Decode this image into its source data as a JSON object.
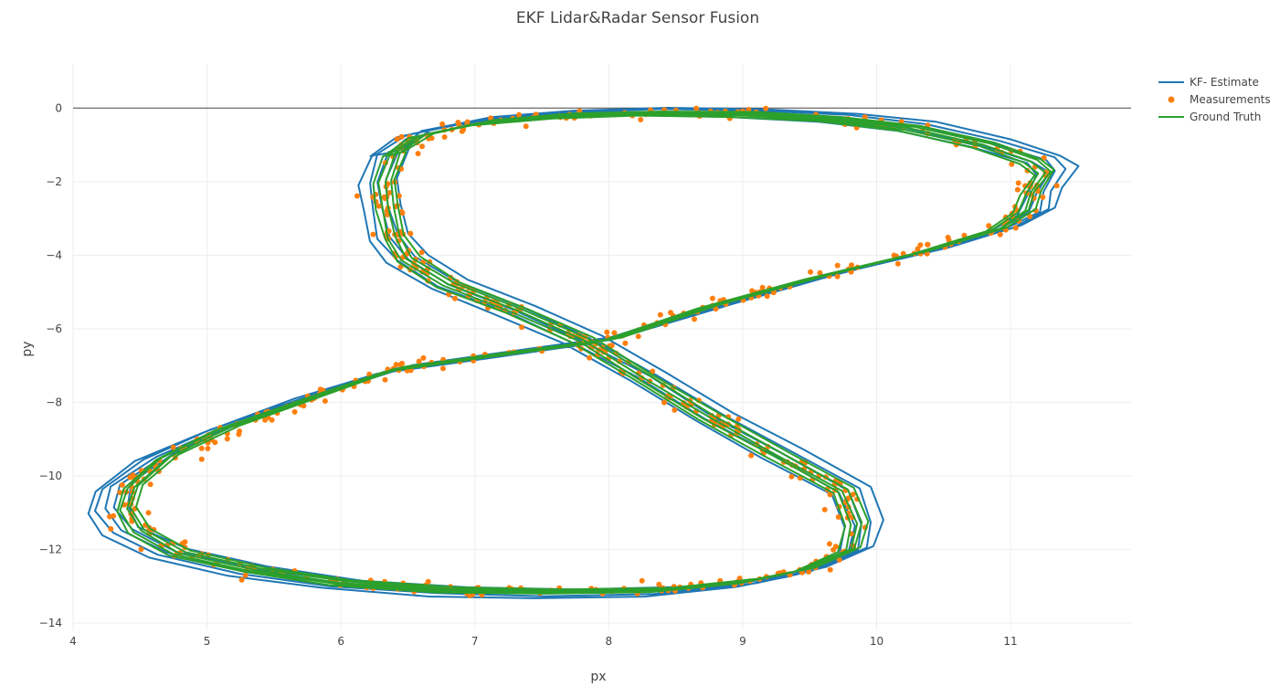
{
  "chart_data": {
    "type": "line",
    "title": "EKF Lidar&Radar Sensor Fusion",
    "xlabel": "px",
    "ylabel": "py",
    "xlim": [
      4,
      11.9
    ],
    "ylim": [
      -14.2,
      1.2
    ],
    "x_ticks": [
      4,
      5,
      6,
      7,
      8,
      9,
      10,
      11
    ],
    "y_ticks": [
      0,
      -2,
      -4,
      -6,
      -8,
      -10,
      -12,
      -14
    ],
    "grid": true,
    "legend_position": "top-right",
    "series": [
      {
        "name": "KF- Estimate",
        "mode": "lines",
        "color": "#1f77b4",
        "laps": 5,
        "spread": 0.07,
        "path": [
          [
            6.35,
            -1.2
          ],
          [
            6.55,
            -0.7
          ],
          [
            7.0,
            -0.35
          ],
          [
            7.6,
            -0.18
          ],
          [
            8.3,
            -0.1
          ],
          [
            9.0,
            -0.12
          ],
          [
            9.7,
            -0.25
          ],
          [
            10.3,
            -0.5
          ],
          [
            10.85,
            -0.95
          ],
          [
            11.25,
            -1.4
          ],
          [
            11.35,
            -1.7
          ],
          [
            11.25,
            -2.3
          ],
          [
            11.2,
            -2.8
          ],
          [
            10.95,
            -3.3
          ],
          [
            10.4,
            -3.9
          ],
          [
            9.6,
            -4.6
          ],
          [
            8.8,
            -5.4
          ],
          [
            8.0,
            -6.3
          ],
          [
            7.2,
            -6.7
          ],
          [
            6.4,
            -7.1
          ],
          [
            5.8,
            -7.8
          ],
          [
            5.1,
            -8.7
          ],
          [
            4.6,
            -9.5
          ],
          [
            4.3,
            -10.3
          ],
          [
            4.25,
            -10.9
          ],
          [
            4.35,
            -11.5
          ],
          [
            4.7,
            -12.1
          ],
          [
            5.3,
            -12.6
          ],
          [
            6.0,
            -12.95
          ],
          [
            6.8,
            -13.15
          ],
          [
            7.6,
            -13.2
          ],
          [
            8.4,
            -13.15
          ],
          [
            9.1,
            -12.9
          ],
          [
            9.5,
            -12.6
          ],
          [
            9.85,
            -12.0
          ],
          [
            9.9,
            -11.3
          ],
          [
            9.8,
            -10.4
          ],
          [
            9.3,
            -9.4
          ],
          [
            8.8,
            -8.4
          ],
          [
            8.3,
            -7.3
          ],
          [
            7.8,
            -6.3
          ],
          [
            7.3,
            -5.5
          ],
          [
            6.8,
            -4.8
          ],
          [
            6.5,
            -4.1
          ],
          [
            6.35,
            -3.5
          ],
          [
            6.3,
            -2.7
          ],
          [
            6.28,
            -2.0
          ],
          [
            6.35,
            -1.2
          ]
        ]
      },
      {
        "name": "Measurements",
        "mode": "markers",
        "color": "#ff7f0e",
        "spread": 0.13,
        "samples": 640
      },
      {
        "name": "Ground Truth",
        "mode": "lines",
        "color": "#2ca02c",
        "laps": 5,
        "spread": 0.04,
        "path": [
          [
            6.4,
            -1.25
          ],
          [
            6.6,
            -0.75
          ],
          [
            7.05,
            -0.4
          ],
          [
            7.65,
            -0.22
          ],
          [
            8.3,
            -0.15
          ],
          [
            9.0,
            -0.17
          ],
          [
            9.65,
            -0.3
          ],
          [
            10.25,
            -0.55
          ],
          [
            10.8,
            -1.0
          ],
          [
            11.15,
            -1.45
          ],
          [
            11.25,
            -1.75
          ],
          [
            11.15,
            -2.3
          ],
          [
            11.1,
            -2.8
          ],
          [
            10.9,
            -3.3
          ],
          [
            10.35,
            -3.9
          ],
          [
            9.55,
            -4.6
          ],
          [
            8.75,
            -5.4
          ],
          [
            8.0,
            -6.3
          ],
          [
            7.2,
            -6.7
          ],
          [
            6.4,
            -7.1
          ],
          [
            5.85,
            -7.8
          ],
          [
            5.15,
            -8.7
          ],
          [
            4.7,
            -9.5
          ],
          [
            4.45,
            -10.3
          ],
          [
            4.4,
            -10.9
          ],
          [
            4.5,
            -11.5
          ],
          [
            4.8,
            -12.1
          ],
          [
            5.35,
            -12.55
          ],
          [
            6.0,
            -12.9
          ],
          [
            6.8,
            -13.1
          ],
          [
            7.6,
            -13.15
          ],
          [
            8.4,
            -13.1
          ],
          [
            9.05,
            -12.85
          ],
          [
            9.45,
            -12.55
          ],
          [
            9.8,
            -12.0
          ],
          [
            9.85,
            -11.3
          ],
          [
            9.75,
            -10.4
          ],
          [
            9.25,
            -9.4
          ],
          [
            8.75,
            -8.4
          ],
          [
            8.25,
            -7.3
          ],
          [
            7.8,
            -6.3
          ],
          [
            7.3,
            -5.5
          ],
          [
            6.8,
            -4.8
          ],
          [
            6.5,
            -4.1
          ],
          [
            6.4,
            -3.5
          ],
          [
            6.35,
            -2.7
          ],
          [
            6.33,
            -2.0
          ],
          [
            6.4,
            -1.25
          ]
        ]
      }
    ]
  }
}
